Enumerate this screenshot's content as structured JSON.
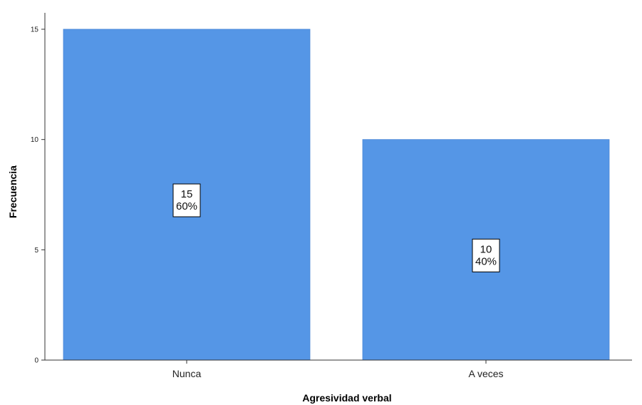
{
  "chart_data": {
    "type": "bar",
    "categories": [
      "Nunca",
      "A veces"
    ],
    "values": [
      15,
      10
    ],
    "data_labels": [
      {
        "count": "15",
        "percent": "60%"
      },
      {
        "count": "10",
        "percent": "40%"
      }
    ],
    "title": "",
    "xlabel": "Agresividad verbal",
    "ylabel": "Frecuencia",
    "ylim": [
      0,
      15
    ],
    "yticks": [
      0,
      5,
      10,
      15
    ],
    "grid": false,
    "bar_color": "#5596e6"
  }
}
